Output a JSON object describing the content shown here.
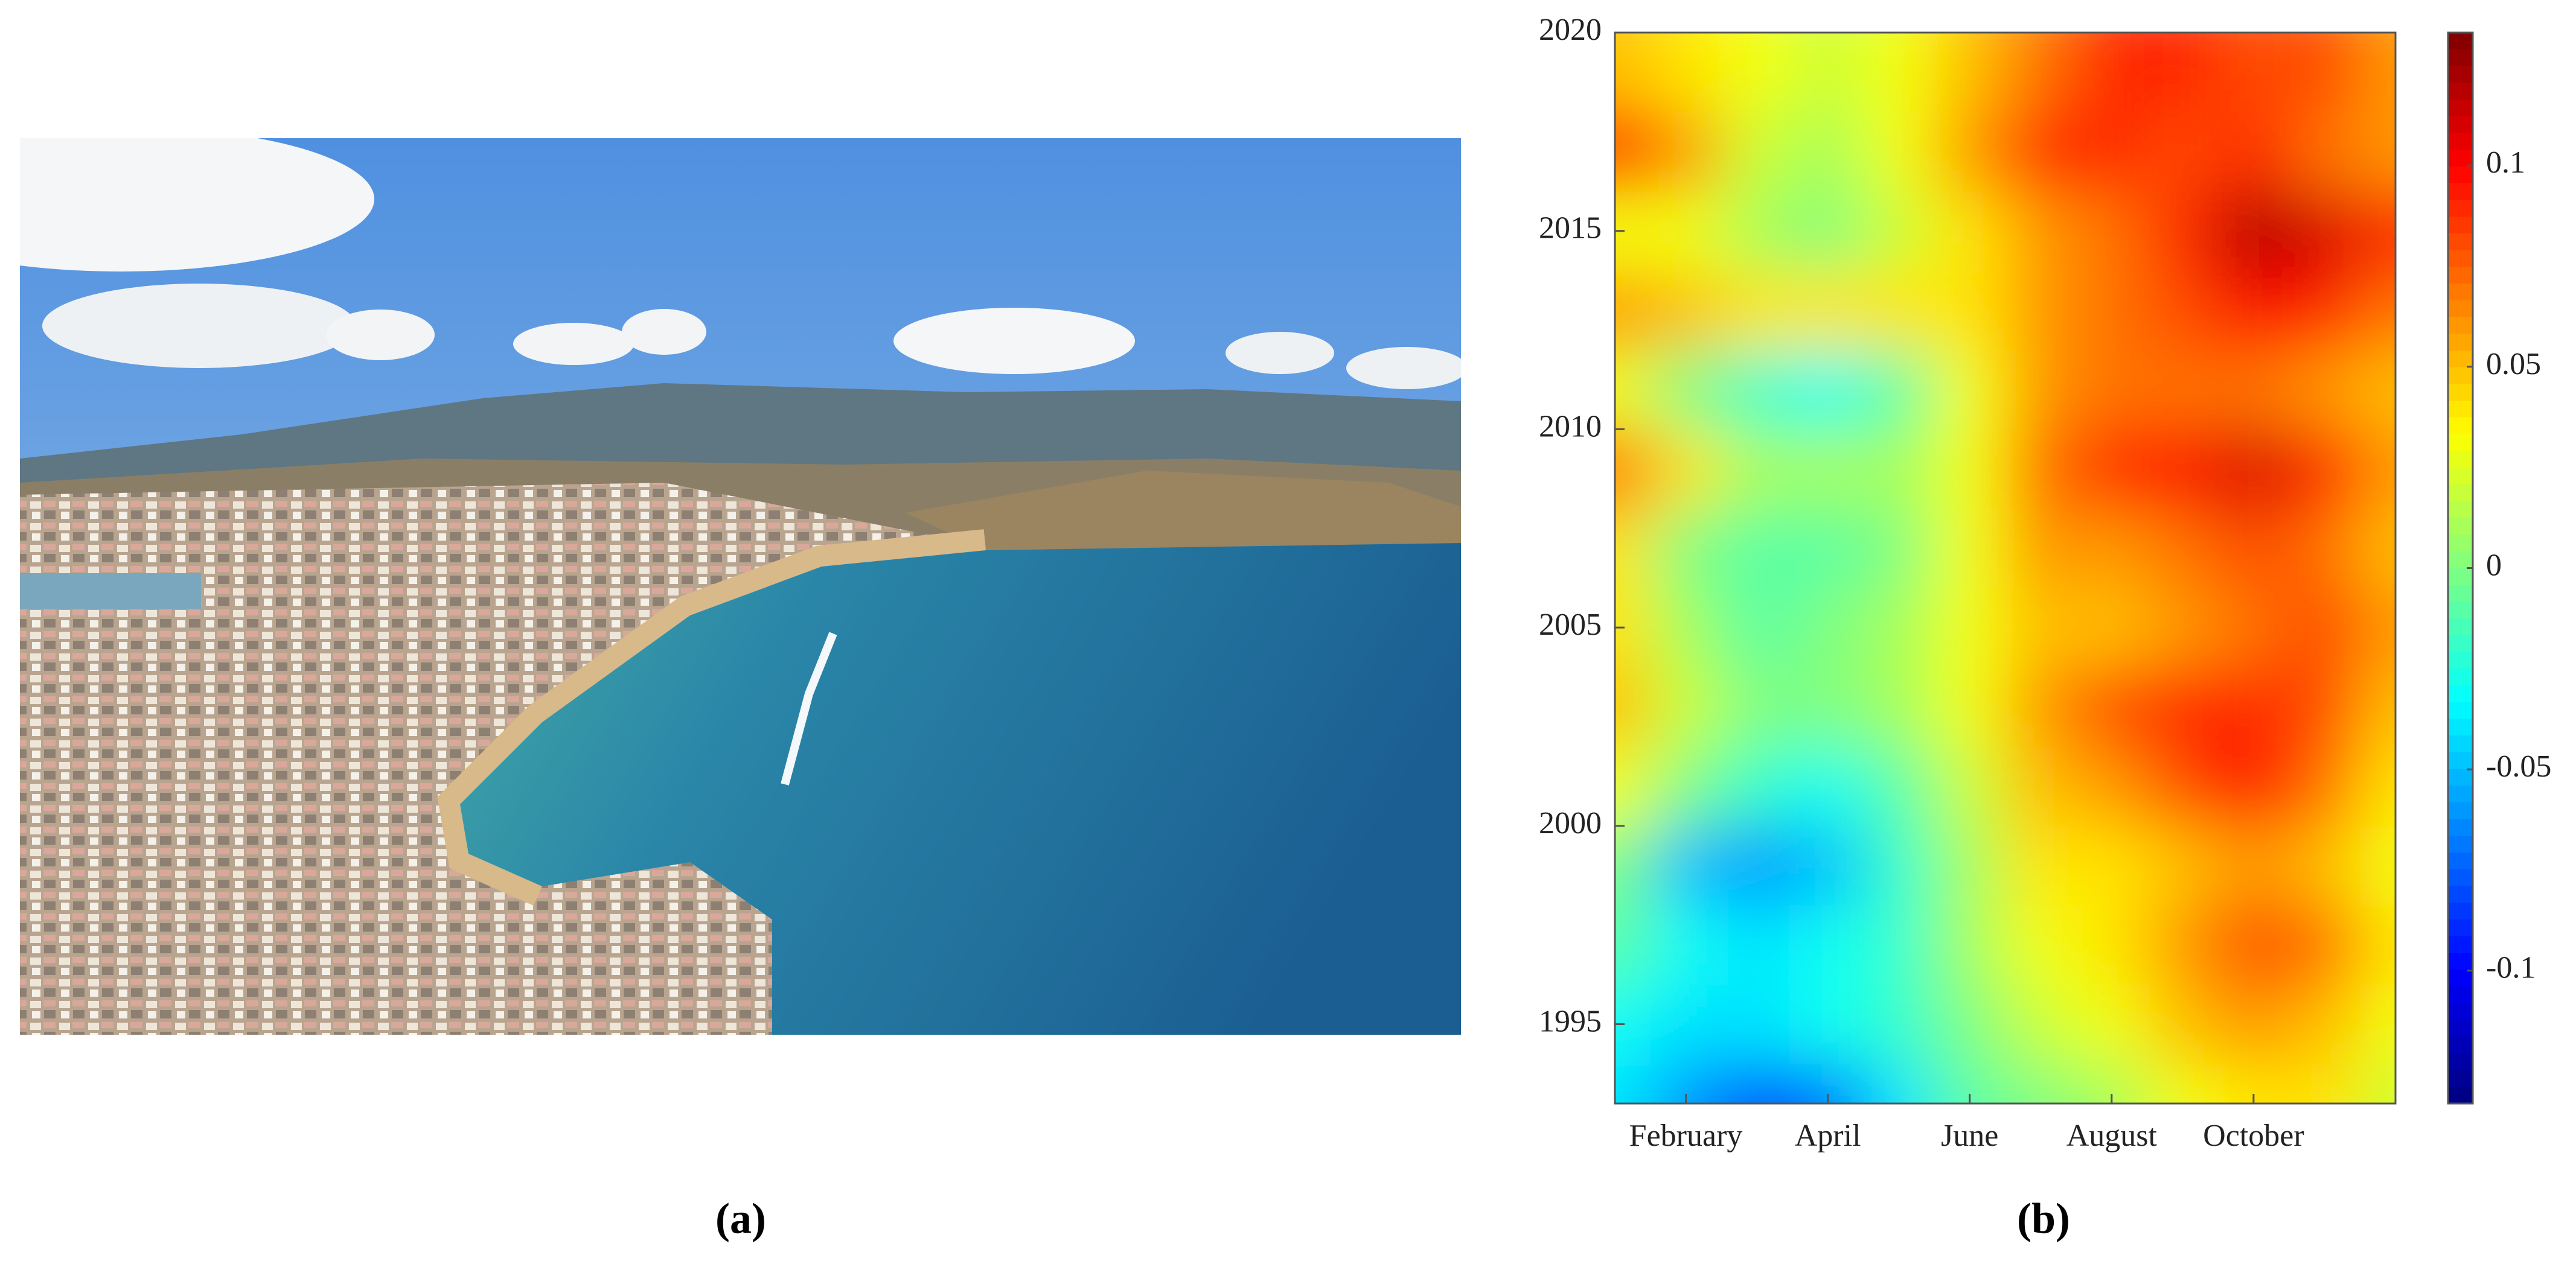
{
  "figure": {
    "captions": [
      "(a)",
      "(b)"
    ]
  },
  "chart_data": {
    "type": "contour",
    "x": [
      1,
      2,
      3,
      4,
      5,
      6,
      7,
      8,
      9,
      10,
      11,
      12
    ],
    "y": [
      1993,
      1995,
      1997,
      1999,
      2001,
      2003,
      2005,
      2007,
      2009,
      2011,
      2013,
      2015,
      2017,
      2019
    ],
    "z": [
      [
        -0.04,
        -0.06,
        -0.08,
        -0.07,
        -0.04,
        -0.01,
        0.0,
        0.01,
        0.03,
        0.04,
        0.04,
        0.02
      ],
      [
        -0.03,
        -0.04,
        -0.04,
        -0.03,
        -0.02,
        0.0,
        0.02,
        0.03,
        0.05,
        0.06,
        0.05,
        0.03
      ],
      [
        -0.01,
        -0.03,
        -0.04,
        -0.03,
        -0.02,
        0.01,
        0.03,
        0.04,
        0.06,
        0.08,
        0.07,
        0.04
      ],
      [
        0.0,
        -0.05,
        -0.06,
        -0.05,
        -0.02,
        0.01,
        0.04,
        0.04,
        0.05,
        0.06,
        0.05,
        0.03
      ],
      [
        0.03,
        0.0,
        -0.02,
        -0.03,
        -0.01,
        0.02,
        0.05,
        0.06,
        0.08,
        0.1,
        0.07,
        0.04
      ],
      [
        0.05,
        0.02,
        0.0,
        0.0,
        0.01,
        0.03,
        0.06,
        0.08,
        0.09,
        0.09,
        0.08,
        0.05
      ],
      [
        0.04,
        0.01,
        -0.01,
        0.0,
        0.01,
        0.03,
        0.05,
        0.05,
        0.06,
        0.07,
        0.08,
        0.06
      ],
      [
        0.04,
        0.0,
        -0.01,
        -0.01,
        0.0,
        0.03,
        0.06,
        0.06,
        0.07,
        0.08,
        0.07,
        0.05
      ],
      [
        0.07,
        0.04,
        0.01,
        0.01,
        0.01,
        0.03,
        0.07,
        0.09,
        0.1,
        0.11,
        0.09,
        0.06
      ],
      [
        0.03,
        0.0,
        -0.02,
        -0.03,
        -0.01,
        0.03,
        0.06,
        0.07,
        0.07,
        0.07,
        0.06,
        0.05
      ],
      [
        0.06,
        0.05,
        0.04,
        0.04,
        0.04,
        0.04,
        0.06,
        0.07,
        0.08,
        0.1,
        0.09,
        0.07
      ],
      [
        0.03,
        0.03,
        0.01,
        0.0,
        0.02,
        0.04,
        0.06,
        0.07,
        0.09,
        0.12,
        0.11,
        0.09
      ],
      [
        0.1,
        0.06,
        0.02,
        0.01,
        0.03,
        0.06,
        0.09,
        0.09,
        0.08,
        0.09,
        0.07,
        0.06
      ],
      [
        0.05,
        0.04,
        0.03,
        0.02,
        0.03,
        0.05,
        0.07,
        0.09,
        0.09,
        0.08,
        0.08,
        0.06
      ]
    ],
    "xlim": [
      1,
      12
    ],
    "xticks": [
      {
        "value": 2,
        "label": "February"
      },
      {
        "value": 4,
        "label": "April"
      },
      {
        "value": 6,
        "label": "June"
      },
      {
        "value": 8,
        "label": "August"
      },
      {
        "value": 10,
        "label": "October"
      }
    ],
    "ylim": [
      1993,
      2020
    ],
    "yticks": [
      1995,
      2000,
      2005,
      2010,
      2015,
      2020
    ],
    "zlim": [
      -0.133,
      0.133
    ],
    "zticks": [
      -0.1,
      -0.05,
      0,
      0.05,
      0.1
    ],
    "colormap": "jet"
  }
}
